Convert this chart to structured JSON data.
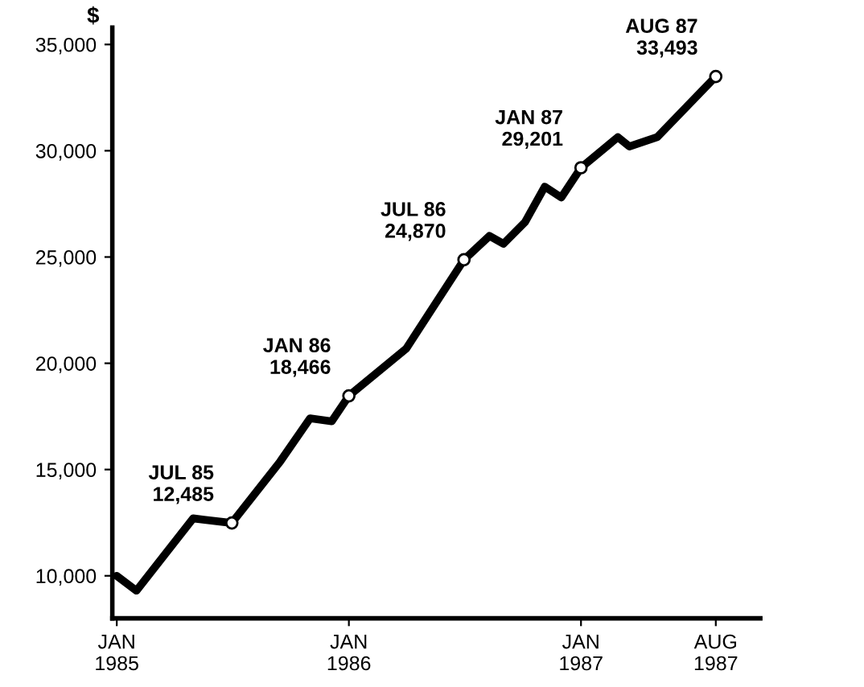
{
  "chart_data": {
    "type": "line",
    "ylabel": "$",
    "x": [
      "1985-01",
      "1985-02",
      "1985-05",
      "1985-07",
      "1985-09-15",
      "1985-11",
      "1985-12-05",
      "1986-01",
      "1986-04",
      "1986-07",
      "1986-08-10",
      "1986-09",
      "1986-10-05",
      "1986-11-05",
      "1986-12",
      "1987-01",
      "1987-02-28",
      "1987-03-18",
      "1987-05",
      "1987-08"
    ],
    "series": [
      {
        "color": "#000000",
        "values": [
          10000,
          9300,
          12700,
          12485,
          15380,
          17410,
          17270,
          18466,
          20680,
          24870,
          25990,
          25620,
          26640,
          28310,
          27800,
          29201,
          30640,
          30200,
          30640,
          33493
        ]
      }
    ],
    "xlim": [
      "1984-12-25",
      "1987-10-10"
    ],
    "xticks": [
      {
        "value": "1985-01",
        "label": "JAN\n1985"
      },
      {
        "value": "1986-01",
        "label": "JAN\n1986"
      },
      {
        "value": "1987-01",
        "label": "JAN\n1987"
      },
      {
        "value": "1987-08",
        "label": "AUG\n1987"
      }
    ],
    "ylim": [
      8000,
      35800
    ],
    "yticks": [
      {
        "value": 10000,
        "label": "10,000"
      },
      {
        "value": 15000,
        "label": "15,000"
      },
      {
        "value": 20000,
        "label": "20,000"
      },
      {
        "value": 25000,
        "label": "25,000"
      },
      {
        "value": 30000,
        "label": "30,000"
      },
      {
        "value": 35000,
        "label": "35,000"
      }
    ],
    "annotations": [
      {
        "text": "JUL 85\n12,485",
        "x": "1985-07",
        "y": 12485
      },
      {
        "text": "JAN 86\n18,466",
        "x": "1986-01",
        "y": 18466
      },
      {
        "text": "JUL 86\n24,870",
        "x": "1986-07",
        "y": 24870
      },
      {
        "text": "JAN 87\n29,201",
        "x": "1987-01",
        "y": 29201
      },
      {
        "text": "AUG 87\n33,493",
        "x": "1987-08",
        "y": 33493
      }
    ],
    "grid": false,
    "line_style": "solid",
    "marker": "none"
  }
}
